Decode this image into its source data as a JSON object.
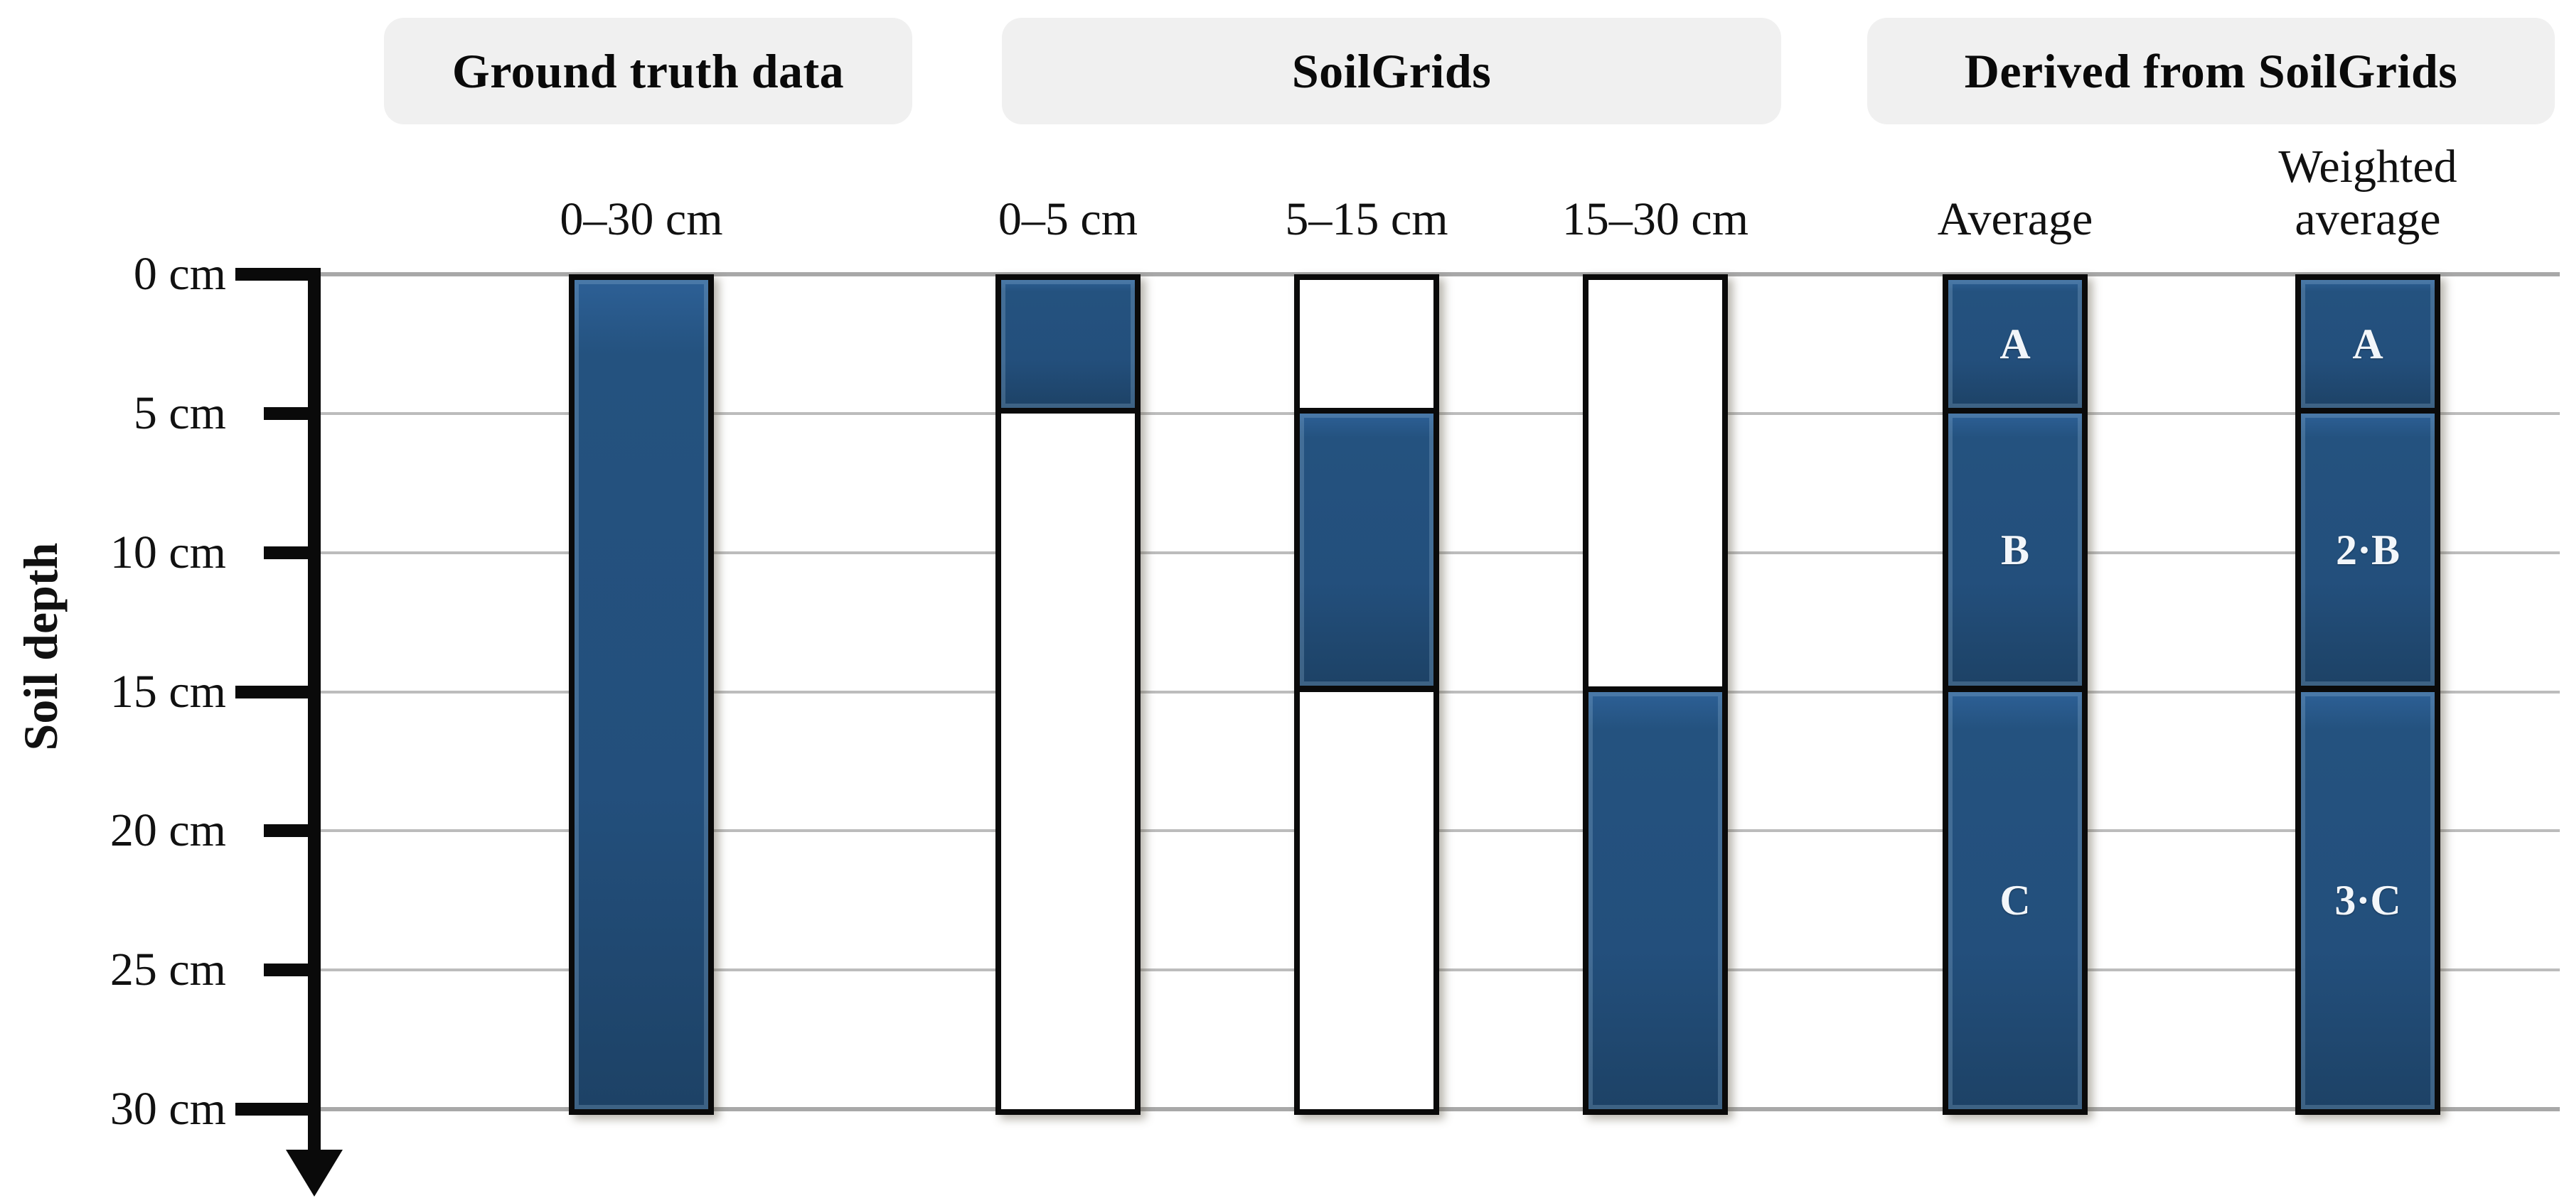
{
  "figure": {
    "groups": [
      {
        "label": "Ground truth data"
      },
      {
        "label": "SoilGrids"
      },
      {
        "label": "Derived from SoilGrids"
      }
    ],
    "axis": {
      "label": "Soil depth",
      "unit": "cm",
      "ticks": [
        {
          "depth": 0,
          "label": "0 cm"
        },
        {
          "depth": 5,
          "label": "5 cm"
        },
        {
          "depth": 10,
          "label": "10 cm"
        },
        {
          "depth": 15,
          "label": "15 cm"
        },
        {
          "depth": 20,
          "label": "20 cm"
        },
        {
          "depth": 25,
          "label": "25 cm"
        },
        {
          "depth": 30,
          "label": "30 cm"
        }
      ]
    },
    "columns": [
      {
        "id": "ground-truth-0-30",
        "group": "Ground truth data",
        "label_lines": [
          "0–30 cm"
        ],
        "segments": [
          {
            "from": 0,
            "to": 30,
            "filled": true,
            "text": ""
          }
        ]
      },
      {
        "id": "soilgrids-0-5",
        "group": "SoilGrids",
        "label_lines": [
          "0–5 cm"
        ],
        "segments": [
          {
            "from": 0,
            "to": 5,
            "filled": true,
            "text": ""
          },
          {
            "from": 5,
            "to": 30,
            "filled": false,
            "text": ""
          }
        ]
      },
      {
        "id": "soilgrids-5-15",
        "group": "SoilGrids",
        "label_lines": [
          "5–15 cm"
        ],
        "segments": [
          {
            "from": 0,
            "to": 5,
            "filled": false,
            "text": ""
          },
          {
            "from": 5,
            "to": 15,
            "filled": true,
            "text": ""
          },
          {
            "from": 15,
            "to": 30,
            "filled": false,
            "text": ""
          }
        ]
      },
      {
        "id": "soilgrids-15-30",
        "group": "SoilGrids",
        "label_lines": [
          "15–30 cm"
        ],
        "segments": [
          {
            "from": 0,
            "to": 15,
            "filled": false,
            "text": ""
          },
          {
            "from": 15,
            "to": 30,
            "filled": true,
            "text": ""
          }
        ]
      },
      {
        "id": "derived-average",
        "group": "Derived from SoilGrids",
        "label_lines": [
          "Average"
        ],
        "segments": [
          {
            "from": 0,
            "to": 5,
            "filled": true,
            "text": "A"
          },
          {
            "from": 5,
            "to": 15,
            "filled": true,
            "text": "B"
          },
          {
            "from": 15,
            "to": 30,
            "filled": true,
            "text": "C"
          }
        ]
      },
      {
        "id": "derived-weighted-average",
        "group": "Derived from SoilGrids",
        "label_lines": [
          "Weighted",
          "average"
        ],
        "segments": [
          {
            "from": 0,
            "to": 5,
            "filled": true,
            "text": "A"
          },
          {
            "from": 5,
            "to": 15,
            "filled": true,
            "text": "2·B"
          },
          {
            "from": 15,
            "to": 30,
            "filled": true,
            "text": "3·C"
          }
        ]
      }
    ],
    "colors": {
      "bar_fill": "#234f7c",
      "bar_border": "#0a0a0a",
      "empty_fill": "#ffffff",
      "segment_text": "#ffffff",
      "header_bg": "#f0f0f0",
      "gridline": "#bcbcbc",
      "gridline_major": "#a8a8a8",
      "axis": "#0a0a0a"
    }
  }
}
